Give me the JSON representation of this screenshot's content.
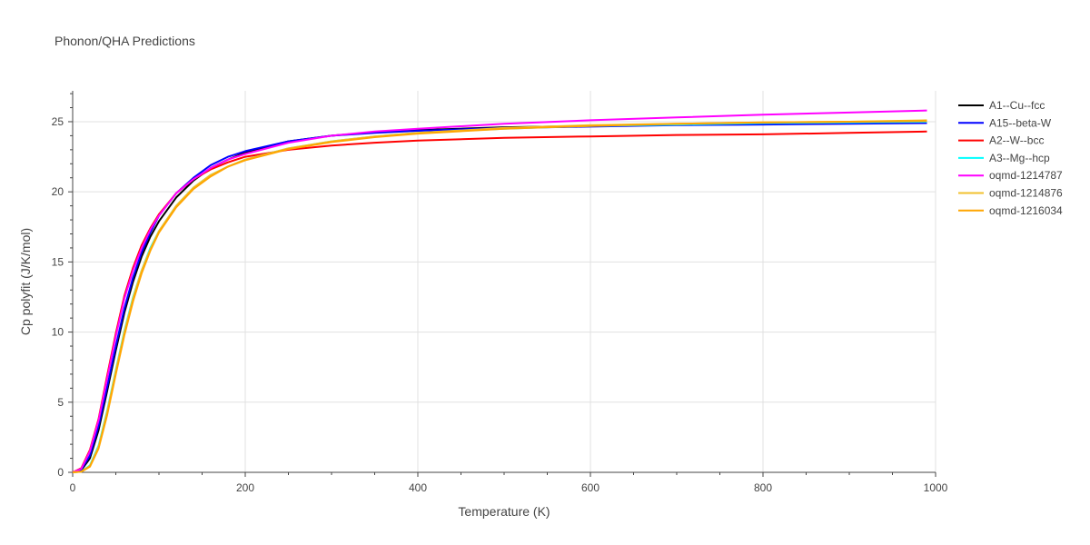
{
  "chart_data": {
    "type": "line",
    "title": "Phonon/QHA Predictions",
    "xlabel": "Temperature (K)",
    "ylabel": "Cp polyfit (J/K/mol)",
    "xlim": [
      0,
      1000
    ],
    "ylim": [
      0,
      27.2
    ],
    "xticks": [
      0,
      200,
      400,
      600,
      800,
      1000
    ],
    "yticks": [
      0,
      5,
      10,
      15,
      20,
      25
    ],
    "grid": true,
    "legend_position": "right",
    "series": [
      {
        "name": "A1--Cu--fcc",
        "color": "#000000",
        "x": [
          0,
          10,
          20,
          30,
          40,
          50,
          60,
          70,
          80,
          90,
          100,
          120,
          140,
          160,
          180,
          200,
          250,
          300,
          350,
          400,
          500,
          600,
          700,
          800,
          900,
          990
        ],
        "y": [
          0,
          0.15,
          1.0,
          3.0,
          5.8,
          8.7,
          11.4,
          13.6,
          15.4,
          16.8,
          17.9,
          19.6,
          20.8,
          21.7,
          22.3,
          22.8,
          23.6,
          24.0,
          24.25,
          24.4,
          24.6,
          24.7,
          24.8,
          24.9,
          24.95,
          25.0
        ]
      },
      {
        "name": "A15--beta-W",
        "color": "#0000ff",
        "x": [
          0,
          10,
          20,
          30,
          40,
          50,
          60,
          70,
          80,
          90,
          100,
          120,
          140,
          160,
          180,
          200,
          250,
          300,
          350,
          400,
          500,
          600,
          700,
          800,
          900,
          990
        ],
        "y": [
          0,
          0.2,
          1.2,
          3.3,
          6.1,
          9.0,
          11.7,
          13.9,
          15.7,
          17.1,
          18.3,
          19.9,
          21.0,
          21.9,
          22.5,
          22.9,
          23.6,
          24.0,
          24.2,
          24.35,
          24.55,
          24.65,
          24.75,
          24.8,
          24.85,
          24.9
        ]
      },
      {
        "name": "A2--W--bcc",
        "color": "#ff0000",
        "x": [
          0,
          10,
          20,
          30,
          40,
          50,
          60,
          70,
          80,
          90,
          100,
          120,
          140,
          160,
          180,
          200,
          250,
          300,
          350,
          400,
          500,
          600,
          700,
          800,
          900,
          990
        ],
        "y": [
          0,
          0.3,
          1.6,
          3.8,
          6.9,
          9.9,
          12.6,
          14.6,
          16.2,
          17.4,
          18.4,
          19.9,
          20.9,
          21.6,
          22.1,
          22.5,
          23.0,
          23.3,
          23.5,
          23.65,
          23.85,
          23.95,
          24.05,
          24.1,
          24.2,
          24.3
        ]
      },
      {
        "name": "A3--Mg--hcp",
        "color": "#00ffff",
        "x": [
          0,
          10,
          20,
          30,
          40,
          50,
          60,
          70,
          80,
          90,
          100,
          120,
          140,
          160,
          180,
          200,
          250,
          300,
          350,
          400,
          500,
          600,
          700,
          800,
          900,
          990
        ],
        "y": [
          0,
          0.05,
          0.5,
          1.9,
          4.4,
          7.3,
          10.1,
          12.5,
          14.4,
          16.0,
          17.2,
          19.0,
          20.3,
          21.2,
          21.8,
          22.3,
          23.1,
          23.6,
          23.95,
          24.2,
          24.5,
          24.7,
          24.8,
          24.9,
          24.95,
          25.0
        ]
      },
      {
        "name": "oqmd-1214787",
        "color": "#ff00ff",
        "x": [
          0,
          10,
          20,
          30,
          40,
          50,
          60,
          70,
          80,
          90,
          100,
          120,
          140,
          160,
          180,
          200,
          250,
          300,
          350,
          400,
          500,
          600,
          700,
          800,
          900,
          990
        ],
        "y": [
          0,
          0.25,
          1.5,
          3.7,
          6.7,
          9.7,
          12.4,
          14.4,
          16.0,
          17.3,
          18.3,
          19.9,
          20.9,
          21.7,
          22.3,
          22.7,
          23.5,
          24.0,
          24.3,
          24.5,
          24.85,
          25.1,
          25.3,
          25.5,
          25.65,
          25.8
        ]
      },
      {
        "name": "oqmd-1214876",
        "color": "#f2c12e",
        "x": [
          0,
          10,
          20,
          30,
          40,
          50,
          60,
          70,
          80,
          90,
          100,
          120,
          140,
          160,
          180,
          200,
          250,
          300,
          350,
          400,
          500,
          600,
          700,
          800,
          900,
          990
        ],
        "y": [
          0,
          0.05,
          0.45,
          1.8,
          4.3,
          7.2,
          10.0,
          12.4,
          14.4,
          15.9,
          17.2,
          19.0,
          20.3,
          21.2,
          21.8,
          22.3,
          23.1,
          23.6,
          23.95,
          24.2,
          24.55,
          24.75,
          24.85,
          24.95,
          25.0,
          25.1
        ]
      },
      {
        "name": "oqmd-1216034",
        "color": "#ffa500",
        "x": [
          0,
          10,
          20,
          30,
          40,
          50,
          60,
          70,
          80,
          90,
          100,
          120,
          140,
          160,
          180,
          200,
          250,
          300,
          350,
          400,
          500,
          600,
          700,
          800,
          900,
          990
        ],
        "y": [
          0,
          0.05,
          0.4,
          1.7,
          4.1,
          7.0,
          9.8,
          12.2,
          14.2,
          15.8,
          17.1,
          18.9,
          20.2,
          21.1,
          21.8,
          22.25,
          23.05,
          23.55,
          23.9,
          24.15,
          24.5,
          24.7,
          24.85,
          24.95,
          25.0,
          25.05
        ]
      }
    ]
  }
}
